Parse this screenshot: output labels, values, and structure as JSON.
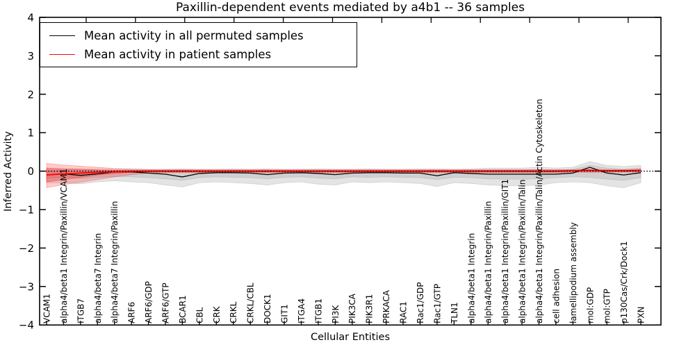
{
  "chart_data": {
    "type": "line",
    "title": "Paxillin-dependent events mediated by a4b1 -- 36 samples",
    "xlabel": "Cellular Entities",
    "ylabel": "Inferred Activity",
    "ylim": [
      -4,
      4
    ],
    "yticks": [
      4,
      3,
      2,
      1,
      0,
      -1,
      -2,
      -3,
      -4
    ],
    "grid": false,
    "legend_position": "upper left",
    "zero_line": {
      "value": 0,
      "style": "dotted",
      "color": "#000000"
    },
    "categories": [
      "VCAM1",
      "alpha4/beta1 Integrin/Paxillin/VCAM1",
      "ITGB7",
      "alpha4/beta7 Integrin",
      "alpha4/beta7 Integrin/Paxillin",
      "ARF6",
      "ARF6/GDP",
      "ARF6/GTP",
      "BCAR1",
      "CBL",
      "CRK",
      "CRKL",
      "CRKL/CBL",
      "DOCK1",
      "GIT1",
      "ITGA4",
      "ITGB1",
      "PI3K",
      "PIK3CA",
      "PIK3R1",
      "PRKACA",
      "RAC1",
      "Rac1/GDP",
      "Rac1/GTP",
      "TLN1",
      "alpha4/beta1 Integrin",
      "alpha4/beta1 Integrin/Paxillin",
      "alpha4/beta1 Integrin/Paxillin/GIT1",
      "alpha4/beta1 Integrin/Paxillin/Talin",
      "alpha4/beta1 Integrin/Paxillin/Talin/Actin Cytoskeleton",
      "cell adhesion",
      "lamellipodium assembly",
      "mol:GDP",
      "mol:GTP",
      "p130Cas/Crk/Dock1",
      "PXN"
    ],
    "series": [
      {
        "name": "Mean activity in all permuted samples",
        "color": "#000000",
        "values": [
          -0.1,
          -0.07,
          -0.11,
          -0.07,
          -0.02,
          -0.02,
          -0.05,
          -0.08,
          -0.15,
          -0.06,
          -0.04,
          -0.04,
          -0.05,
          -0.09,
          -0.05,
          -0.04,
          -0.06,
          -0.09,
          -0.05,
          -0.04,
          -0.04,
          -0.05,
          -0.05,
          -0.12,
          -0.04,
          -0.06,
          -0.08,
          -0.08,
          -0.08,
          -0.08,
          -0.08,
          -0.05,
          0.1,
          -0.05,
          -0.1,
          -0.04
        ]
      },
      {
        "name": "Mean activity in patient samples",
        "color": "#ff0000",
        "values": [
          -0.1,
          -0.07,
          -0.05,
          -0.03,
          -0.02,
          -0.01,
          0,
          0,
          0,
          0,
          0,
          0,
          0,
          0,
          0,
          0,
          0,
          0,
          0,
          0,
          0,
          0,
          0,
          0,
          0,
          0,
          0,
          0,
          0,
          0,
          0,
          0.01,
          0.02,
          0.01,
          0.01,
          0.02
        ]
      }
    ],
    "bands": [
      {
        "name": "permuted-band-outer",
        "color": "#9e9e9e",
        "opacity": 0.28,
        "upper": [
          0.05,
          0.06,
          0.05,
          0.05,
          0.05,
          0.06,
          0.05,
          0.05,
          0.06,
          0.05,
          0.05,
          0.06,
          0.05,
          0.06,
          0.05,
          0.05,
          0.06,
          0.05,
          0.05,
          0.06,
          0.05,
          0.05,
          0.06,
          0.06,
          0.05,
          0.06,
          0.08,
          0.08,
          0.08,
          0.1,
          0.08,
          0.1,
          0.25,
          0.15,
          0.12,
          0.15
        ],
        "lower": [
          -0.3,
          -0.3,
          -0.33,
          -0.28,
          -0.25,
          -0.28,
          -0.3,
          -0.36,
          -0.41,
          -0.3,
          -0.28,
          -0.3,
          -0.32,
          -0.36,
          -0.3,
          -0.28,
          -0.34,
          -0.36,
          -0.28,
          -0.3,
          -0.28,
          -0.3,
          -0.32,
          -0.4,
          -0.3,
          -0.32,
          -0.36,
          -0.38,
          -0.38,
          -0.36,
          -0.3,
          -0.28,
          -0.3,
          -0.38,
          -0.43,
          -0.3
        ]
      },
      {
        "name": "permuted-band-inner",
        "color": "#9e9e9e",
        "opacity": 0.28,
        "upper": [
          0.01,
          0.02,
          0.01,
          0.01,
          0.02,
          0.02,
          0.01,
          0.01,
          0.02,
          0.01,
          0.01,
          0.02,
          0.01,
          0.02,
          0.01,
          0.01,
          0.02,
          0.01,
          0.01,
          0.02,
          0.01,
          0.01,
          0.02,
          0.02,
          0.01,
          0.02,
          0.03,
          0.03,
          0.03,
          0.04,
          0.03,
          0.05,
          0.15,
          0.08,
          0.05,
          0.08
        ],
        "lower": [
          -0.18,
          -0.17,
          -0.19,
          -0.16,
          -0.14,
          -0.15,
          -0.17,
          -0.2,
          -0.24,
          -0.17,
          -0.15,
          -0.16,
          -0.17,
          -0.2,
          -0.16,
          -0.15,
          -0.18,
          -0.2,
          -0.15,
          -0.16,
          -0.15,
          -0.16,
          -0.17,
          -0.22,
          -0.16,
          -0.17,
          -0.2,
          -0.21,
          -0.21,
          -0.2,
          -0.17,
          -0.15,
          -0.16,
          -0.21,
          -0.24,
          -0.17
        ]
      },
      {
        "name": "patient-band-outer",
        "color": "#ff0000",
        "opacity": 0.2,
        "upper": [
          0.2,
          0.16,
          0.13,
          0.1,
          0.07,
          0.05,
          0.04,
          0.04,
          0.04,
          0.04,
          0.04,
          0.04,
          0.04,
          0.04,
          0.04,
          0.04,
          0.04,
          0.04,
          0.04,
          0.04,
          0.04,
          0.04,
          0.04,
          0.04,
          0.04,
          0.04,
          0.04,
          0.04,
          0.04,
          0.04,
          0.04,
          0.04,
          0.05,
          0.04,
          0.04,
          0.05
        ],
        "lower": [
          -0.43,
          -0.35,
          -0.29,
          -0.22,
          -0.15,
          -0.09,
          -0.05,
          -0.04,
          -0.04,
          -0.04,
          -0.04,
          -0.04,
          -0.04,
          -0.04,
          -0.04,
          -0.04,
          -0.04,
          -0.04,
          -0.04,
          -0.04,
          -0.04,
          -0.04,
          -0.04,
          -0.04,
          -0.04,
          -0.04,
          -0.04,
          -0.04,
          -0.04,
          -0.04,
          -0.04,
          -0.03,
          -0.03,
          -0.03,
          -0.03,
          -0.02
        ]
      },
      {
        "name": "patient-band-inner",
        "color": "#ff0000",
        "opacity": 0.24,
        "upper": [
          0.08,
          0.06,
          0.05,
          0.03,
          0.02,
          0.02,
          0.02,
          0.02,
          0.02,
          0.02,
          0.02,
          0.02,
          0.02,
          0.02,
          0.02,
          0.02,
          0.02,
          0.02,
          0.02,
          0.02,
          0.02,
          0.02,
          0.02,
          0.02,
          0.02,
          0.02,
          0.02,
          0.02,
          0.02,
          0.02,
          0.02,
          0.02,
          0.03,
          0.02,
          0.02,
          0.03
        ],
        "lower": [
          -0.28,
          -0.22,
          -0.16,
          -0.1,
          -0.06,
          -0.03,
          -0.02,
          -0.02,
          -0.02,
          -0.02,
          -0.02,
          -0.02,
          -0.02,
          -0.02,
          -0.02,
          -0.02,
          -0.02,
          -0.02,
          -0.02,
          -0.02,
          -0.02,
          -0.02,
          -0.02,
          -0.02,
          -0.02,
          -0.02,
          -0.02,
          -0.02,
          -0.02,
          -0.02,
          -0.02,
          -0.01,
          -0.01,
          -0.01,
          -0.01,
          -0.01
        ]
      }
    ]
  }
}
